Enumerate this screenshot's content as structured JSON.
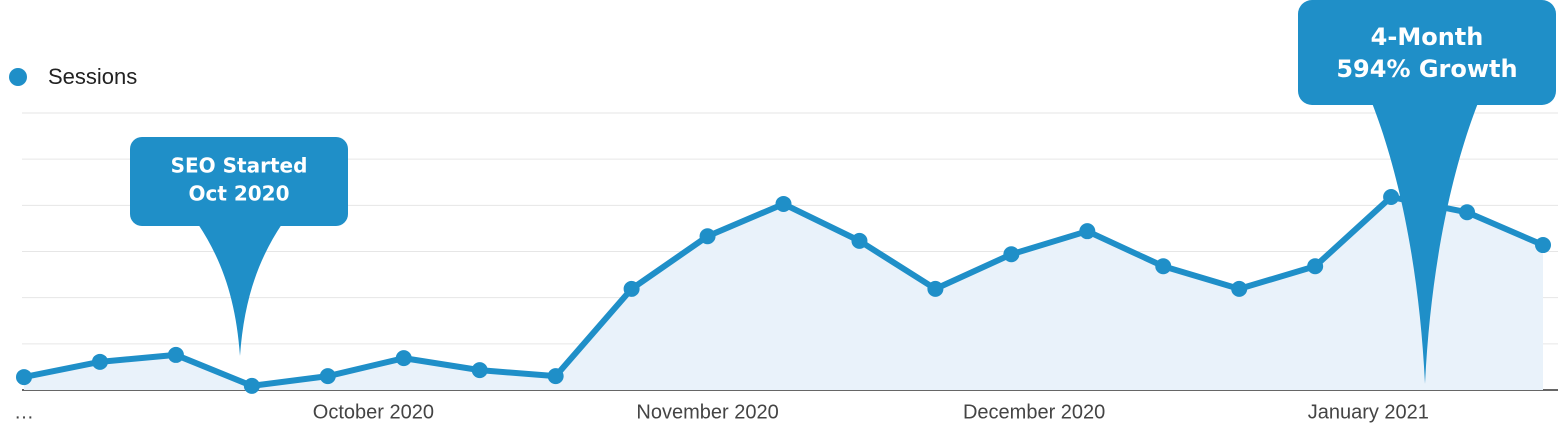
{
  "chart_data": {
    "type": "line",
    "series": [
      {
        "name": "Sessions",
        "color": "#1f8fc8",
        "values": [
          0.28,
          0.61,
          0.76,
          0.09,
          0.3,
          0.69,
          0.43,
          0.3,
          2.19,
          3.33,
          4.03,
          3.23,
          2.19,
          2.94,
          3.44,
          2.68,
          2.19,
          2.68,
          4.18,
          3.85,
          3.14
        ]
      }
    ],
    "categories": [
      "…",
      null,
      null,
      null,
      "October 2020",
      null,
      null,
      null,
      null,
      "November 2020",
      null,
      null,
      null,
      "December 2020",
      null,
      null,
      null,
      "January 2021",
      null,
      null,
      null
    ],
    "ylim": [
      0,
      6
    ],
    "yticks": [
      0,
      1,
      2,
      3,
      4,
      5,
      6
    ],
    "grid": true,
    "area_fill": "#e9f2fa",
    "annotations": [
      {
        "lines": [
          "SEO Started",
          "Oct 2020"
        ]
      },
      {
        "lines": [
          "4-Month",
          "594% Growth"
        ]
      }
    ]
  }
}
